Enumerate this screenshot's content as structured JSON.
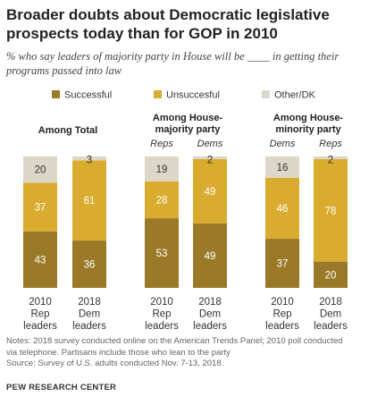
{
  "title_line1": "Broader doubts about Democratic legislative",
  "title_line2": "prospects today than for GOP in 2010",
  "subtitle_line1": "% who say leaders of majority party in House will be ____ in getting their",
  "subtitle_line2": "programs passed into law",
  "chart_data": {
    "type": "bar",
    "stacked": true,
    "legend": [
      "Successful",
      "Unsuccesful",
      "Other/DK"
    ],
    "legend_placement": "top",
    "colors": {
      "Successful": "#9a7a28",
      "Unsuccesful": "#d9ac2f",
      "Other/DK": "#dcd7c8"
    },
    "panels": [
      {
        "title_lines": [
          "Among Total"
        ],
        "bars": [
          {
            "label_lines": [
              "2010",
              "Rep",
              "leaders"
            ],
            "tag": "",
            "values": {
              "Successful": 43,
              "Unsuccesful": 37,
              "Other/DK": 20
            }
          },
          {
            "label_lines": [
              "2018",
              "Dem",
              "leaders"
            ],
            "tag": "",
            "values": {
              "Successful": 36,
              "Unsuccesful": 61,
              "Other/DK": 3
            }
          }
        ]
      },
      {
        "title_lines": [
          "Among House-",
          "majority party"
        ],
        "bars": [
          {
            "label_lines": [
              "2010",
              "Rep",
              "leaders"
            ],
            "tag": "Reps",
            "values": {
              "Successful": 53,
              "Unsuccesful": 28,
              "Other/DK": 19
            }
          },
          {
            "label_lines": [
              "2018",
              "Dem",
              "leaders"
            ],
            "tag": "Dems",
            "values": {
              "Successful": 49,
              "Unsuccesful": 49,
              "Other/DK": 2
            }
          }
        ]
      },
      {
        "title_lines": [
          "Among House-",
          "minority party"
        ],
        "bars": [
          {
            "label_lines": [
              "2010",
              "Rep",
              "leaders"
            ],
            "tag": "Dems",
            "values": {
              "Successful": 37,
              "Unsuccesful": 46,
              "Other/DK": 16
            }
          },
          {
            "label_lines": [
              "2018",
              "Dem",
              "leaders"
            ],
            "tag": "Reps",
            "values": {
              "Successful": 20,
              "Unsuccesful": 78,
              "Other/DK": 2
            }
          }
        ]
      }
    ]
  },
  "notes_line1": "Notes: 2018 survey conducted online on the American Trends Panel; 2010 poll conducted",
  "notes_line2": "via telephone. Partisans include those who lean to the party",
  "source": "Source: Survey of U.S. adults conducted Nov. 7-13, 2018.",
  "brand": "PEW RESEARCH CENTER"
}
